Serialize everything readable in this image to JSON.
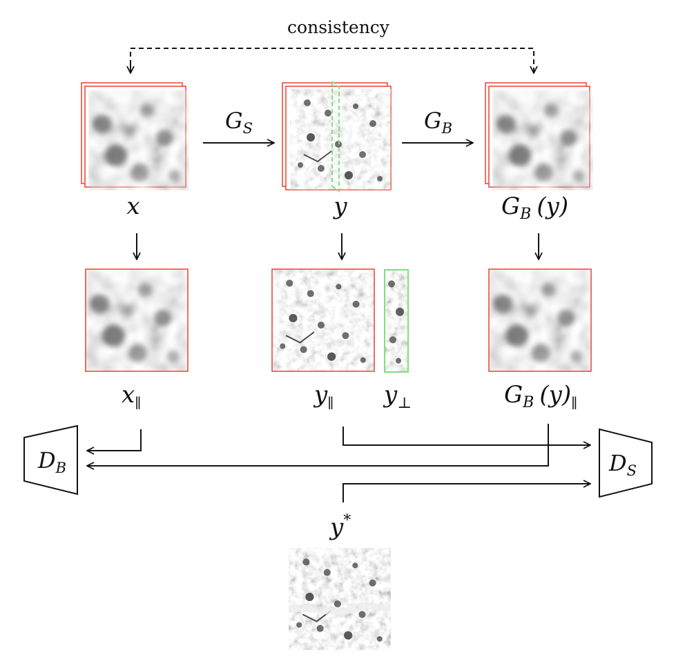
{
  "diagram": {
    "consistency_label": "consistency",
    "generators": {
      "gs": "G",
      "gs_sub": "S",
      "gb": "G",
      "gb_sub": "B"
    },
    "discriminators": {
      "db": "D",
      "db_sub": "B",
      "ds": "D",
      "ds_sub": "S"
    },
    "labels": {
      "x": "x",
      "y": "y",
      "gby_g": "G",
      "gby_sub": "B",
      "gby_rest": "(y)",
      "x_par": "x",
      "x_par_sub": "∥",
      "y_par": "y",
      "y_par_sub": "∥",
      "y_perp": "y",
      "y_perp_sub": "⊥",
      "gby_par_g": "G",
      "gby_par_gsub": "B",
      "gby_par_rest": "(y)",
      "gby_par_sub": "∥",
      "y_star": "y",
      "y_star_sup": "*"
    },
    "colors": {
      "red_frame": "#e8412e",
      "green_frame": "#7fe07a",
      "line": "#111111"
    }
  }
}
